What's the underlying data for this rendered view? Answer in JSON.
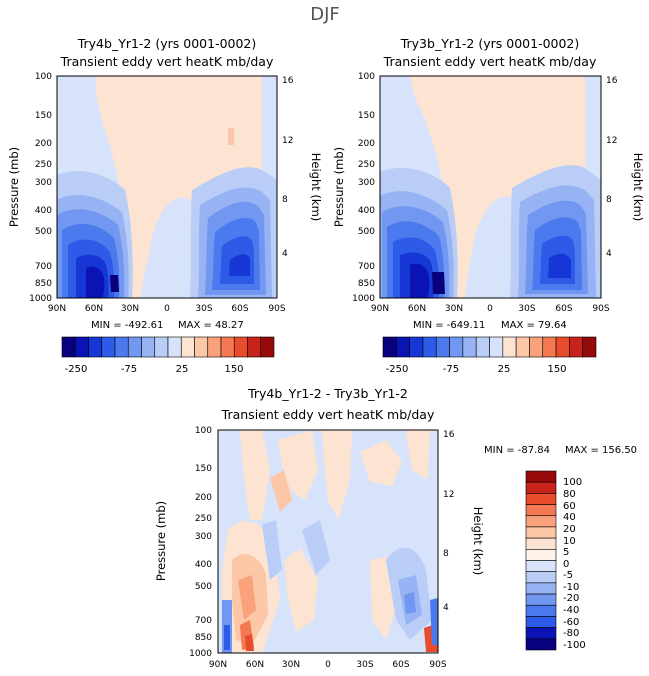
{
  "figure": {
    "title": "DJF"
  },
  "colors": {
    "scale": [
      "#08007d",
      "#0a14b4",
      "#1637d6",
      "#2d5ae7",
      "#4b7aee",
      "#7197f0",
      "#97b3f3",
      "#b9cdf6",
      "#d6e3fa",
      "#fde3d1",
      "#fcc7a6",
      "#f9a27c",
      "#f47852",
      "#e94b2d",
      "#c8231a",
      "#960a0a"
    ]
  },
  "chart_data": [
    {
      "type": "heatmap",
      "id": "panel-a",
      "title": "Try4b_Yr1-2 (yrs 0001-0002)",
      "subtitle": "Transient eddy vert heatK mb/day",
      "xlabel": "",
      "ylabel": "Pressure (mb)",
      "ylabel_right": "Height (km)",
      "x_ticks": [
        "90N",
        "60N",
        "30N",
        "0",
        "30S",
        "60S",
        "90S"
      ],
      "y_ticks": [
        "100",
        "150",
        "200",
        "250",
        "300",
        "400",
        "500",
        "700",
        "850",
        "1000"
      ],
      "y_ticks_right": [
        "16",
        "12",
        "8",
        "4"
      ],
      "stats": {
        "min_label": "MIN = -492.61",
        "max_label": "MAX = 48.27",
        "min": -492.61,
        "max": 48.27
      },
      "colorbar_labels": [
        "-250",
        "-75",
        "25",
        "150"
      ]
    },
    {
      "type": "heatmap",
      "id": "panel-b",
      "title": "Try3b_Yr1-2 (yrs 0001-0002)",
      "subtitle": "Transient eddy vert heatK mb/day",
      "xlabel": "",
      "ylabel": "Pressure (mb)",
      "ylabel_right": "Height (km)",
      "x_ticks": [
        "90N",
        "60N",
        "30N",
        "0",
        "30S",
        "60S",
        "90S"
      ],
      "y_ticks": [
        "100",
        "150",
        "200",
        "250",
        "300",
        "400",
        "500",
        "700",
        "850",
        "1000"
      ],
      "y_ticks_right": [
        "16",
        "12",
        "8",
        "4"
      ],
      "stats": {
        "min_label": "MIN = -649.11",
        "max_label": "MAX = 79.64",
        "min": -649.11,
        "max": 79.64
      },
      "colorbar_labels": [
        "-250",
        "-75",
        "25",
        "150"
      ]
    },
    {
      "type": "heatmap",
      "id": "panel-diff",
      "title": "Try4b_Yr1-2 - Try3b_Yr1-2",
      "subtitle": "Transient eddy vert heatK mb/day",
      "xlabel": "",
      "ylabel": "Pressure (mb)",
      "ylabel_right": "Height (km)",
      "x_ticks": [
        "90N",
        "60N",
        "30N",
        "0",
        "30S",
        "60S",
        "90S"
      ],
      "y_ticks": [
        "100",
        "150",
        "200",
        "250",
        "300",
        "400",
        "500",
        "700",
        "850",
        "1000"
      ],
      "y_ticks_right": [
        "16",
        "12",
        "8",
        "4"
      ],
      "stats": {
        "min_label": "MIN = -87.84",
        "max_label": "MAX = 156.50",
        "min": -87.84,
        "max": 156.5
      },
      "colorbar_labels": [
        "100",
        "80",
        "60",
        "40",
        "20",
        "10",
        "5",
        "0",
        "-5",
        "-10",
        "-20",
        "-40",
        "-60",
        "-80",
        "-100"
      ]
    }
  ]
}
